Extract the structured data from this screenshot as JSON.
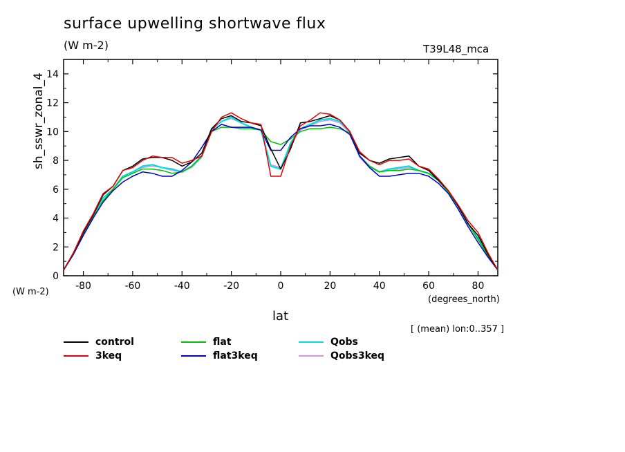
{
  "chart_data": {
    "type": "line",
    "title": "surface upwelling shortwave flux",
    "units": "(W m-2)",
    "run_label": "T39L48_mca",
    "ylabel": "sh_sswr_zonal_4",
    "y_units_label": "(W m-2)",
    "xlabel": "lat",
    "x_units_label": "(degrees_north)",
    "note": "[ (mean) lon:0..357 ]",
    "xlim": [
      -88,
      88
    ],
    "ylim": [
      0,
      15
    ],
    "x_ticks": [
      -80,
      -60,
      -40,
      -20,
      0,
      20,
      40,
      60,
      80
    ],
    "x_tick_labels": [
      "-80",
      "-60",
      "-40",
      "-20",
      "0",
      "20",
      "40",
      "60",
      "80"
    ],
    "y_ticks": [
      0,
      2,
      4,
      6,
      8,
      10,
      12,
      14
    ],
    "y_tick_labels": [
      "0",
      "2",
      "4",
      "6",
      "8",
      "10",
      "12",
      "14"
    ],
    "grid": false,
    "legend_position": "bottom",
    "series": [
      {
        "name": "control",
        "color": "#000000",
        "x": [
          -88,
          -84,
          -80,
          -76,
          -72,
          -68,
          -64,
          -60,
          -56,
          -52,
          -48,
          -44,
          -40,
          -36,
          -32,
          -28,
          -24,
          -20,
          -16,
          -12,
          -8,
          -4,
          0,
          4,
          8,
          12,
          16,
          20,
          24,
          28,
          32,
          36,
          40,
          44,
          48,
          52,
          56,
          60,
          64,
          68,
          72,
          76,
          80,
          84,
          88
        ],
        "values": [
          0.4,
          1.6,
          3.0,
          4.2,
          5.6,
          6.2,
          7.3,
          7.6,
          8.1,
          8.2,
          8.2,
          8.0,
          7.6,
          7.9,
          8.5,
          10.2,
          10.9,
          11.1,
          10.7,
          10.6,
          10.4,
          8.8,
          7.4,
          8.8,
          10.6,
          10.7,
          10.9,
          11.1,
          10.8,
          10.0,
          8.5,
          8.0,
          7.8,
          8.1,
          8.2,
          8.3,
          7.6,
          7.3,
          6.6,
          5.9,
          4.8,
          3.6,
          2.8,
          1.5,
          0.4
        ]
      },
      {
        "name": "3keq",
        "color": "#e00000",
        "x": [
          -88,
          -84,
          -80,
          -76,
          -72,
          -68,
          -64,
          -60,
          -56,
          -52,
          -48,
          -44,
          -40,
          -36,
          -32,
          -28,
          -24,
          -20,
          -16,
          -12,
          -8,
          -4,
          0,
          4,
          8,
          12,
          16,
          20,
          24,
          28,
          32,
          36,
          40,
          44,
          48,
          52,
          56,
          60,
          64,
          68,
          72,
          76,
          80,
          84,
          88
        ],
        "values": [
          0.4,
          1.6,
          3.1,
          4.3,
          5.7,
          6.2,
          7.3,
          7.5,
          8.0,
          8.3,
          8.2,
          8.2,
          7.8,
          8.0,
          8.3,
          10.0,
          11.0,
          11.3,
          10.9,
          10.6,
          10.5,
          6.9,
          6.9,
          9.0,
          10.4,
          10.8,
          11.3,
          11.2,
          10.8,
          10.0,
          8.6,
          8.0,
          7.7,
          8.0,
          8.0,
          8.1,
          7.6,
          7.4,
          6.7,
          5.9,
          4.9,
          3.8,
          3.0,
          1.6,
          0.4
        ]
      },
      {
        "name": "flat",
        "color": "#00c000",
        "x": [
          -88,
          -84,
          -80,
          -76,
          -72,
          -68,
          -64,
          -60,
          -56,
          -52,
          -48,
          -44,
          -40,
          -36,
          -32,
          -28,
          -24,
          -20,
          -16,
          -12,
          -8,
          -4,
          0,
          4,
          8,
          12,
          16,
          20,
          24,
          28,
          32,
          36,
          40,
          44,
          48,
          52,
          56,
          60,
          64,
          68,
          72,
          76,
          80,
          84,
          88
        ],
        "values": [
          0.4,
          1.5,
          2.8,
          4.0,
          5.2,
          6.0,
          6.8,
          7.1,
          7.4,
          7.4,
          7.3,
          7.1,
          7.2,
          7.6,
          8.3,
          10.0,
          10.3,
          10.3,
          10.2,
          10.2,
          10.1,
          9.3,
          9.1,
          9.5,
          10.0,
          10.2,
          10.2,
          10.3,
          10.2,
          9.9,
          8.3,
          7.6,
          7.2,
          7.3,
          7.3,
          7.4,
          7.3,
          7.1,
          6.6,
          5.8,
          4.8,
          3.6,
          2.5,
          1.4,
          0.4
        ]
      },
      {
        "name": "flat3keq",
        "color": "#0000c0",
        "x": [
          -88,
          -84,
          -80,
          -76,
          -72,
          -68,
          -64,
          -60,
          -56,
          -52,
          -48,
          -44,
          -40,
          -36,
          -32,
          -28,
          -24,
          -20,
          -16,
          -12,
          -8,
          -4,
          0,
          4,
          8,
          12,
          16,
          20,
          24,
          28,
          32,
          36,
          40,
          44,
          48,
          52,
          56,
          60,
          64,
          68,
          72,
          76,
          80,
          84,
          88
        ],
        "values": [
          0.4,
          1.5,
          2.8,
          4.0,
          5.1,
          5.9,
          6.5,
          6.9,
          7.2,
          7.1,
          6.9,
          6.9,
          7.3,
          7.9,
          8.9,
          10.0,
          10.5,
          10.3,
          10.3,
          10.3,
          10.1,
          8.7,
          8.7,
          9.6,
          10.2,
          10.4,
          10.4,
          10.5,
          10.3,
          9.8,
          8.3,
          7.5,
          6.9,
          6.9,
          7.0,
          7.1,
          7.1,
          6.9,
          6.4,
          5.7,
          4.6,
          3.4,
          2.3,
          1.3,
          0.4
        ]
      },
      {
        "name": "Qobs",
        "color": "#00e0e0",
        "x": [
          -88,
          -84,
          -80,
          -76,
          -72,
          -68,
          -64,
          -60,
          -56,
          -52,
          -48,
          -44,
          -40,
          -36,
          -32,
          -28,
          -24,
          -20,
          -16,
          -12,
          -8,
          -4,
          0,
          4,
          8,
          12,
          16,
          20,
          24,
          28,
          32,
          36,
          40,
          44,
          48,
          52,
          56,
          60,
          64,
          68,
          72,
          76,
          80,
          84,
          88
        ],
        "values": [
          0.4,
          1.5,
          2.9,
          4.1,
          5.4,
          6.0,
          6.9,
          7.2,
          7.6,
          7.7,
          7.5,
          7.4,
          7.2,
          7.6,
          8.3,
          10.2,
          10.7,
          11.0,
          10.6,
          10.3,
          10.1,
          7.6,
          7.4,
          9.2,
          10.2,
          10.5,
          10.8,
          10.9,
          10.7,
          10.0,
          8.3,
          7.6,
          7.2,
          7.4,
          7.5,
          7.6,
          7.3,
          7.1,
          6.6,
          5.8,
          4.8,
          3.6,
          2.6,
          1.4,
          0.4
        ]
      },
      {
        "name": "Qobs3keq",
        "color": "#e090e0",
        "x": [
          -88,
          -84,
          -80,
          -76,
          -72,
          -68,
          -64,
          -60,
          -56,
          -52,
          -48,
          -44,
          -40,
          -36,
          -32,
          -28,
          -24,
          -20,
          -16,
          -12,
          -8,
          -4,
          0,
          4,
          8,
          12,
          16,
          20,
          24,
          28,
          32,
          36,
          40,
          44,
          48,
          52,
          56,
          60,
          64,
          68,
          72,
          76,
          80,
          84,
          88
        ],
        "values": [
          0.4,
          1.5,
          2.9,
          4.1,
          5.4,
          6.0,
          6.9,
          7.2,
          7.5,
          7.6,
          7.5,
          7.3,
          7.2,
          7.5,
          8.2,
          10.1,
          10.7,
          10.9,
          10.6,
          10.3,
          10.1,
          7.7,
          7.5,
          9.1,
          10.1,
          10.4,
          10.7,
          10.8,
          10.6,
          9.9,
          8.2,
          7.5,
          7.2,
          7.3,
          7.4,
          7.5,
          7.3,
          7.1,
          6.6,
          5.8,
          4.8,
          3.6,
          2.6,
          1.4,
          0.4
        ]
      }
    ]
  }
}
